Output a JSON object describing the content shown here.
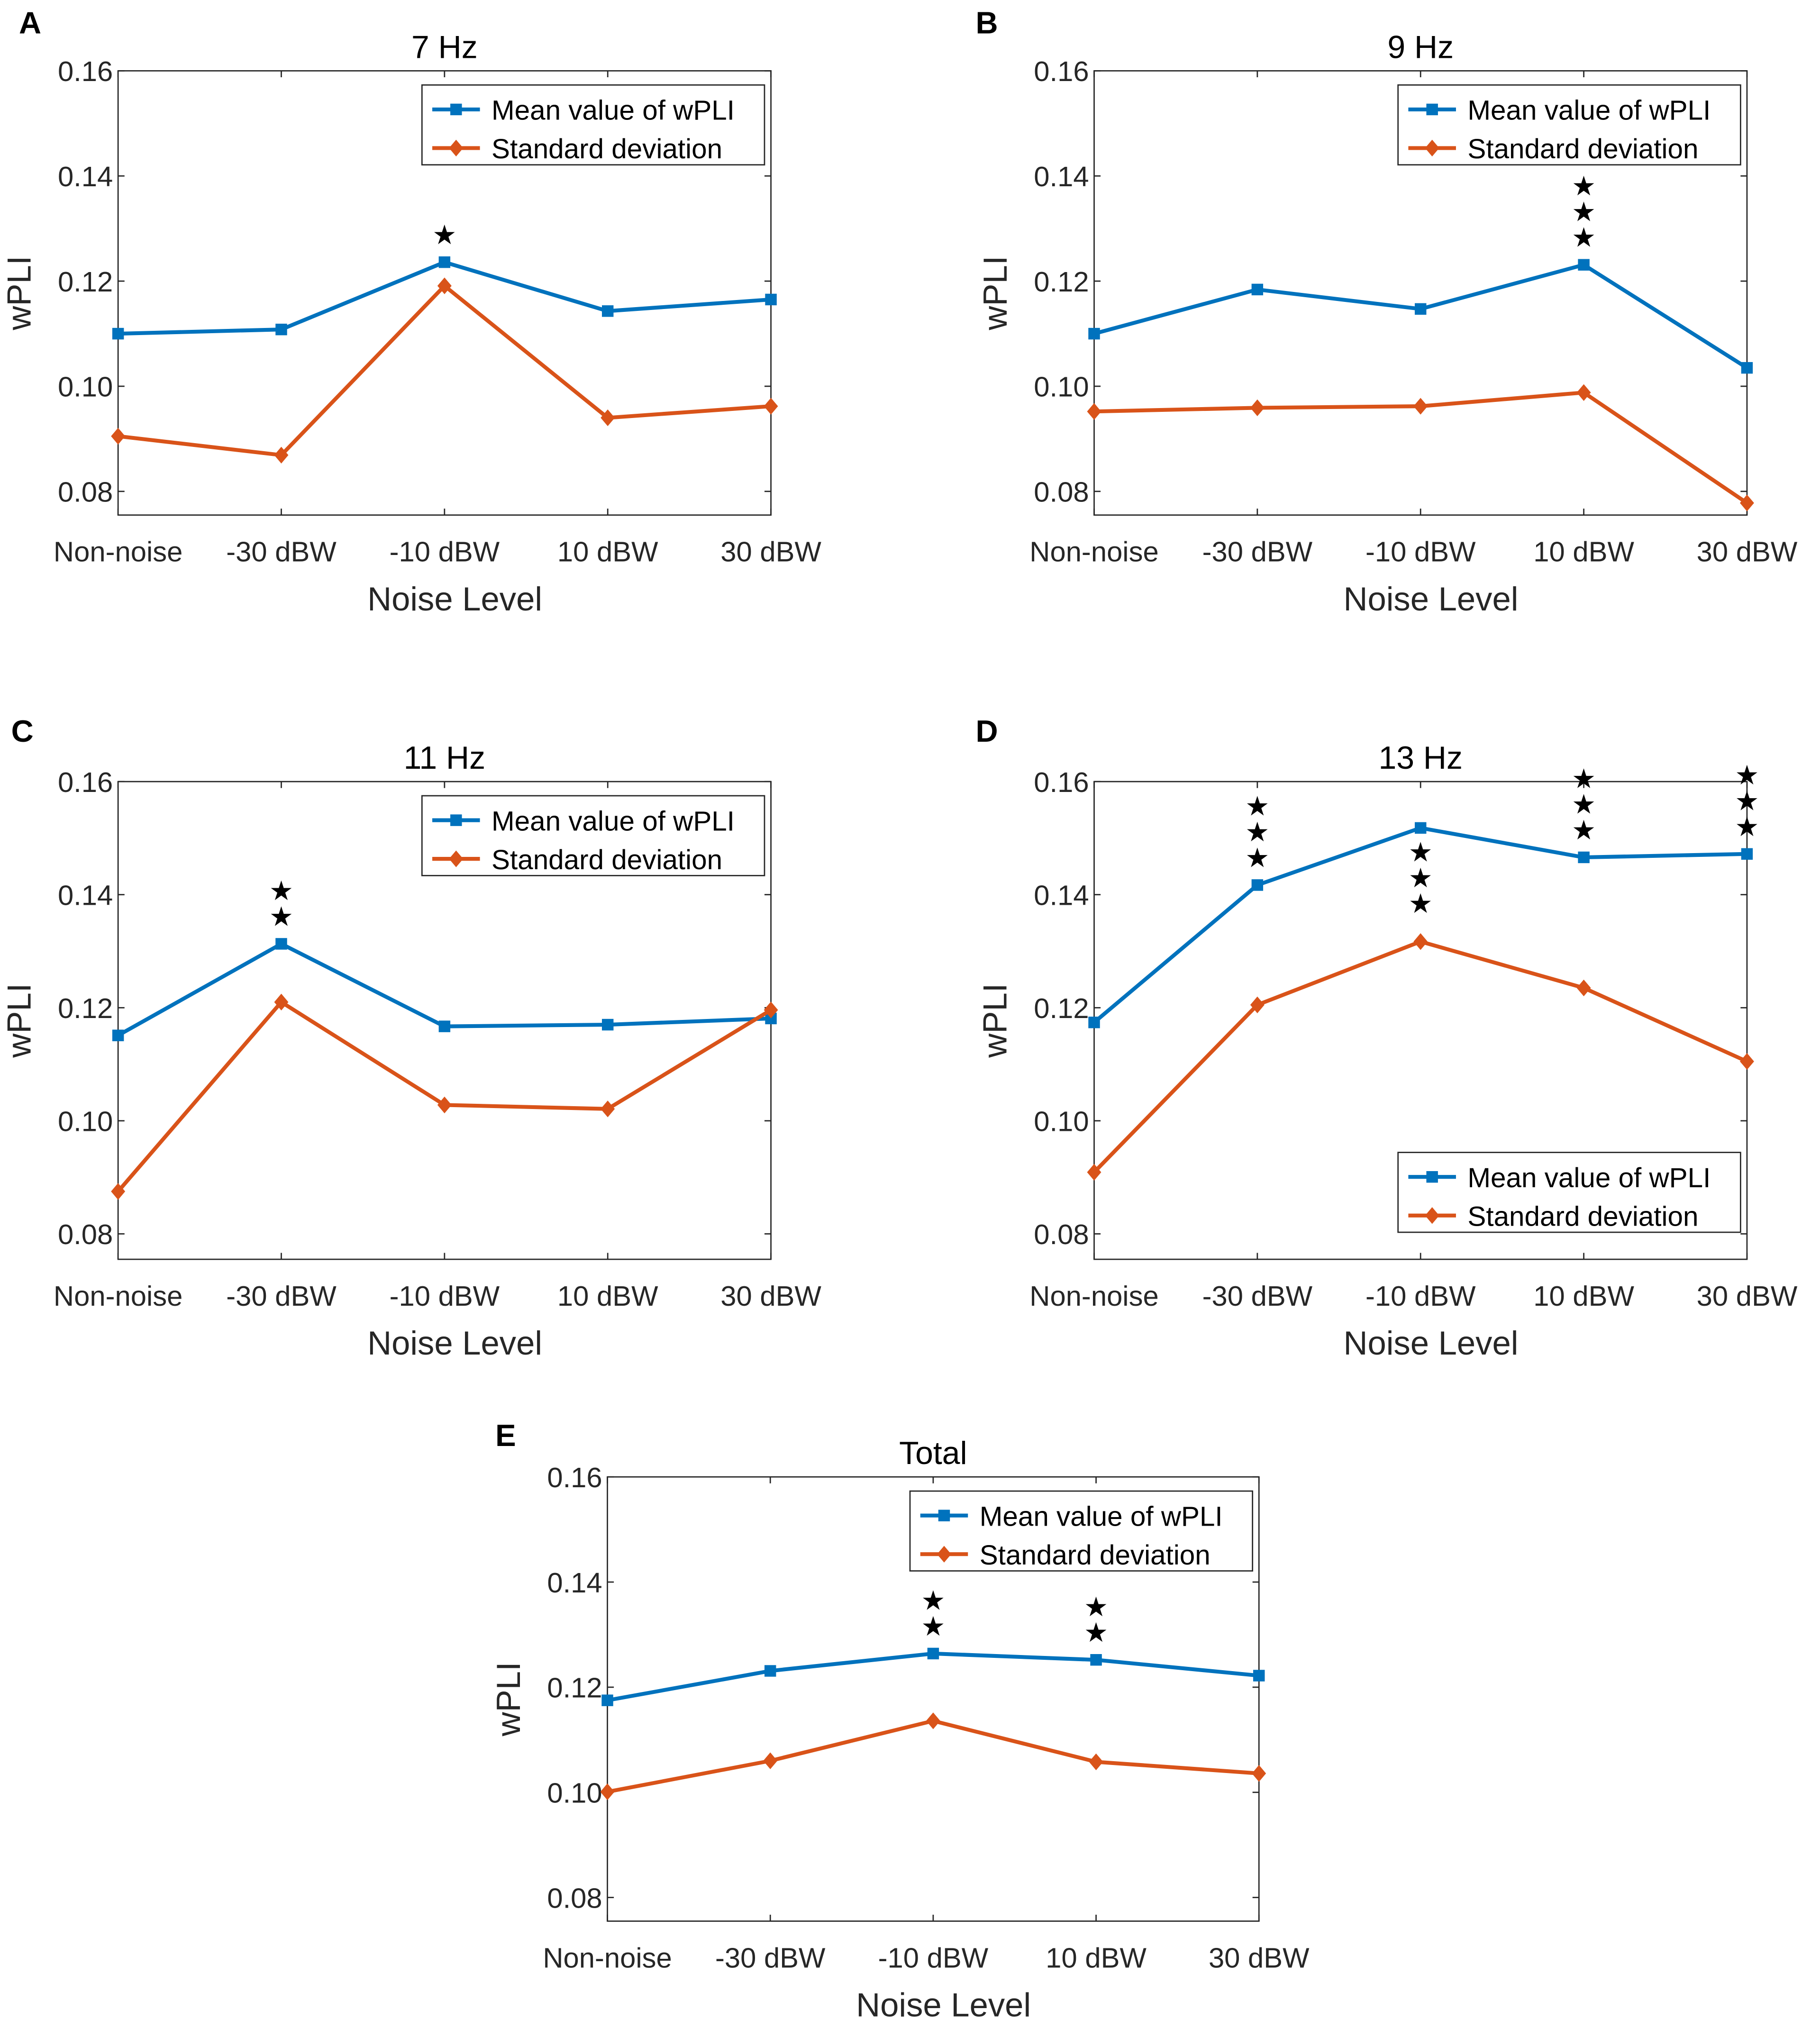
{
  "colors": {
    "mean": "#0072BD",
    "std": "#D95319"
  },
  "chart_data": [
    {
      "panel": "A",
      "type": "line",
      "title": "7 Hz",
      "xlabel": "Noise Level",
      "ylabel": "wPLI",
      "categories": [
        "Non-noise",
        "-30 dBW",
        "-10 dBW",
        "10 dBW",
        "30 dBW"
      ],
      "yticks": [
        "0.08",
        "0.10",
        "0.12",
        "0.14",
        "0.16"
      ],
      "ylim": [
        0.0755,
        0.16
      ],
      "grid": false,
      "legend_position": "top-right",
      "series": [
        {
          "name": "Mean value of wPLI",
          "marker": "square",
          "values": [
            0.11,
            0.1108,
            0.1236,
            0.1143,
            0.1165
          ]
        },
        {
          "name": "Standard deviation",
          "marker": "diamond",
          "values": [
            0.0905,
            0.0869,
            0.1191,
            0.094,
            0.0962
          ]
        }
      ],
      "significance_stars": [
        0,
        0,
        1,
        0,
        0
      ]
    },
    {
      "panel": "B",
      "type": "line",
      "title": "9 Hz",
      "xlabel": "Noise Level",
      "ylabel": "wPLI",
      "categories": [
        "Non-noise",
        "-30 dBW",
        "-10 dBW",
        "10 dBW",
        "30 dBW"
      ],
      "yticks": [
        "0.08",
        "0.10",
        "0.12",
        "0.14",
        "0.16"
      ],
      "ylim": [
        0.0755,
        0.16
      ],
      "grid": false,
      "legend_position": "top-right",
      "series": [
        {
          "name": "Mean value of wPLI",
          "marker": "square",
          "values": [
            0.11,
            0.1184,
            0.1147,
            0.1231,
            0.1035
          ]
        },
        {
          "name": "Standard deviation",
          "marker": "diamond",
          "values": [
            0.0952,
            0.0959,
            0.0962,
            0.0988,
            0.0778
          ]
        }
      ],
      "significance_stars": [
        0,
        0,
        0,
        3,
        0
      ]
    },
    {
      "panel": "C",
      "type": "line",
      "title": "11 Hz",
      "xlabel": "Noise Level",
      "ylabel": "wPLI",
      "categories": [
        "Non-noise",
        "-30 dBW",
        "-10 dBW",
        "10 dBW",
        "30 dBW"
      ],
      "yticks": [
        "0.08",
        "0.10",
        "0.12",
        "0.14",
        "0.16"
      ],
      "ylim": [
        0.0755,
        0.16
      ],
      "grid": false,
      "legend_position": "top-right",
      "series": [
        {
          "name": "Mean value of wPLI",
          "marker": "square",
          "values": [
            0.1151,
            0.1313,
            0.1167,
            0.117,
            0.1181
          ]
        },
        {
          "name": "Standard deviation",
          "marker": "diamond",
          "values": [
            0.0875,
            0.121,
            0.1028,
            0.1021,
            0.1196
          ]
        }
      ],
      "significance_stars": [
        0,
        2,
        0,
        0,
        0
      ]
    },
    {
      "panel": "D",
      "type": "line",
      "title": "13 Hz",
      "xlabel": "Noise Level",
      "ylabel": "wPLI",
      "categories": [
        "Non-noise",
        "-30 dBW",
        "-10 dBW",
        "10 dBW",
        "30 dBW"
      ],
      "yticks": [
        "0.08",
        "0.10",
        "0.12",
        "0.14",
        "0.16"
      ],
      "ylim": [
        0.0755,
        0.16
      ],
      "grid": false,
      "legend_position": "bottom-right",
      "series": [
        {
          "name": "Mean value of wPLI",
          "marker": "square",
          "values": [
            0.1174,
            0.1417,
            0.1518,
            0.1466,
            0.1472
          ]
        },
        {
          "name": "Standard deviation",
          "marker": "diamond",
          "values": [
            0.0909,
            0.1205,
            0.1317,
            0.1235,
            0.1105
          ]
        }
      ],
      "significance_stars": [
        0,
        3,
        3,
        3,
        3
      ]
    },
    {
      "panel": "E",
      "type": "line",
      "title": "Total",
      "xlabel": "Noise Level",
      "ylabel": "wPLI",
      "categories": [
        "Non-noise",
        "-30 dBW",
        "-10 dBW",
        "10 dBW",
        "30 dBW"
      ],
      "yticks": [
        "0.08",
        "0.10",
        "0.12",
        "0.14",
        "0.16"
      ],
      "ylim": [
        0.0755,
        0.16
      ],
      "grid": false,
      "legend_position": "top-right",
      "series": [
        {
          "name": "Mean value of wPLI",
          "marker": "square",
          "values": [
            0.1175,
            0.1231,
            0.1264,
            0.1252,
            0.1222
          ]
        },
        {
          "name": "Standard deviation",
          "marker": "diamond",
          "values": [
            0.1001,
            0.106,
            0.1136,
            0.1058,
            0.1036
          ]
        }
      ],
      "significance_stars": [
        0,
        0,
        2,
        2,
        0
      ]
    }
  ]
}
